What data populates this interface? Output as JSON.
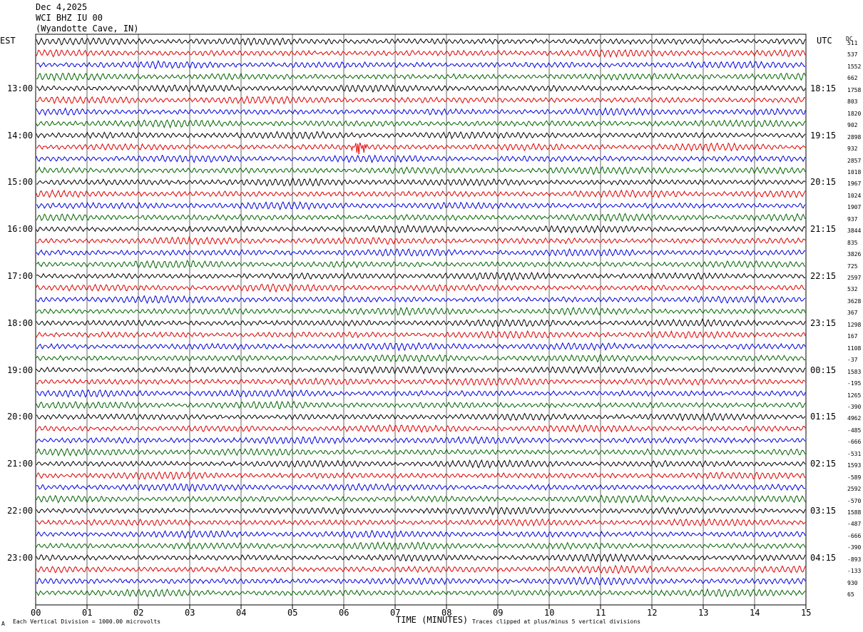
{
  "header": {
    "date": "Dec 4,2025",
    "station": "WCI BHZ IU 00",
    "location": "(Wyandotte Cave, IN)"
  },
  "left_tz_label": "EST",
  "right_tz_label": "UTC",
  "dc_label": "DC",
  "x_axis_label": "TIME (MINUTES)",
  "footnote_left": "Each Vertical Division = 1000.00 microvolts",
  "footnote_right": "Traces clipped at plus/minus 5 vertical divisions",
  "corner_mark": "A",
  "colors": {
    "cycle": [
      "#000000",
      "#dd0000",
      "#0000dd",
      "#006400"
    ],
    "grid": "#000000"
  },
  "chart_data": {
    "type": "line",
    "title": "WCI BHZ IU 00 (Wyandotte Cave, IN)",
    "xlabel": "TIME (MINUTES)",
    "x_ticks": [
      "00",
      "01",
      "02",
      "03",
      "04",
      "05",
      "06",
      "07",
      "08",
      "09",
      "10",
      "11",
      "12",
      "13",
      "14",
      "15"
    ],
    "xlim": [
      0,
      15
    ],
    "trace_minutes_per_line": 15,
    "lines_count": 48,
    "left_hour_labels": [
      {
        "label": "13:00",
        "line": 4
      },
      {
        "label": "14:00",
        "line": 8
      },
      {
        "label": "15:00",
        "line": 12
      },
      {
        "label": "16:00",
        "line": 16
      },
      {
        "label": "17:00",
        "line": 20
      },
      {
        "label": "18:00",
        "line": 24
      },
      {
        "label": "19:00",
        "line": 28
      },
      {
        "label": "20:00",
        "line": 32
      },
      {
        "label": "21:00",
        "line": 36
      },
      {
        "label": "22:00",
        "line": 40
      },
      {
        "label": "23:00",
        "line": 44
      }
    ],
    "right_hour_labels": [
      {
        "label": "18:15",
        "line": 4
      },
      {
        "label": "19:15",
        "line": 8
      },
      {
        "label": "20:15",
        "line": 12
      },
      {
        "label": "21:15",
        "line": 16
      },
      {
        "label": "22:15",
        "line": 20
      },
      {
        "label": "23:15",
        "line": 24
      },
      {
        "label": "00:15",
        "line": 28
      },
      {
        "label": "01:15",
        "line": 32
      },
      {
        "label": "02:15",
        "line": 36
      },
      {
        "label": "03:15",
        "line": 40
      },
      {
        "label": "04:15",
        "line": 44
      }
    ],
    "dc_offsets": [
      "511",
      "537",
      "1552",
      "662",
      "1758",
      "803",
      "1820",
      "902",
      "2898",
      "932",
      "2857",
      "1018",
      "1967",
      "1024",
      "1907",
      "937",
      "3844",
      "835",
      "3826",
      "725",
      "2597",
      "532",
      "3628",
      "367",
      "1298",
      "167",
      "1108",
      "-37",
      "1583",
      "-195",
      "1265",
      "-390",
      "4962",
      "-485",
      "-666",
      "-531",
      "1593",
      "-589",
      "2592",
      "-570",
      "1588",
      "-487",
      "-666",
      "-390",
      "-893",
      "-133",
      "930",
      "65"
    ],
    "events": [
      {
        "line": 9,
        "minute": 6.3,
        "note": "large red burst"
      }
    ]
  }
}
